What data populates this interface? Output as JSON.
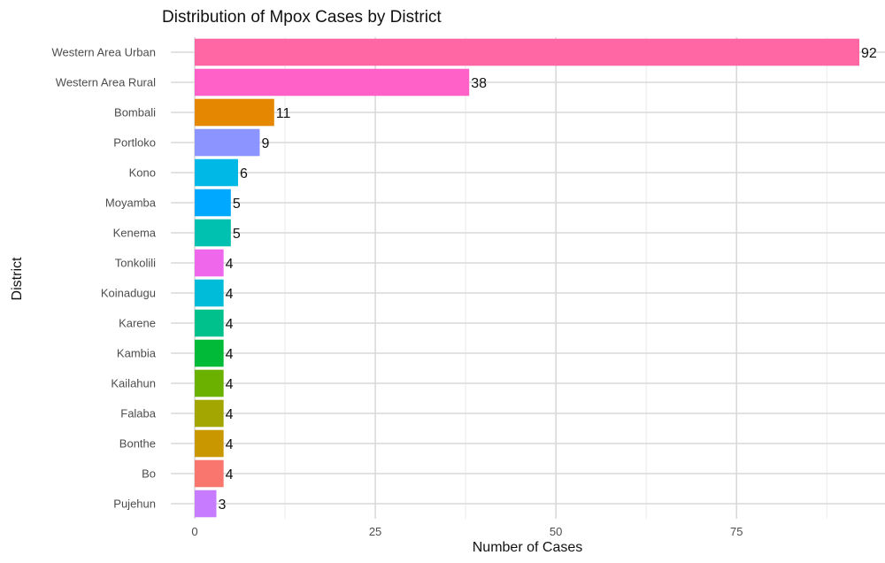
{
  "chart_data": {
    "type": "bar",
    "orientation": "horizontal",
    "title": "Distribution of Mpox Cases by District",
    "xlabel": "Number of Cases",
    "ylabel": "District",
    "xlim": [
      0,
      92
    ],
    "x_ticks": [
      0,
      25,
      50,
      75
    ],
    "grid": true,
    "legend": "none",
    "categories": [
      "Western Area Urban",
      "Western Area Rural",
      "Bombali",
      "Portloko",
      "Kono",
      "Moyamba",
      "Kenema",
      "Tonkolili",
      "Koinadugu",
      "Karene",
      "Kambia",
      "Kailahun",
      "Falaba",
      "Bonthe",
      "Bo",
      "Pujehun"
    ],
    "values": [
      92,
      38,
      11,
      9,
      6,
      5,
      5,
      4,
      4,
      4,
      4,
      4,
      4,
      4,
      4,
      3
    ],
    "colors": [
      "#FF67A4",
      "#FF61C9",
      "#E58700",
      "#8C94FF",
      "#00B8E5",
      "#00A9FF",
      "#00C0AF",
      "#EF67EB",
      "#00BCD8",
      "#00C08B",
      "#00BA38",
      "#6BB100",
      "#A3A500",
      "#C99800",
      "#F8766D",
      "#C77CFF"
    ]
  }
}
